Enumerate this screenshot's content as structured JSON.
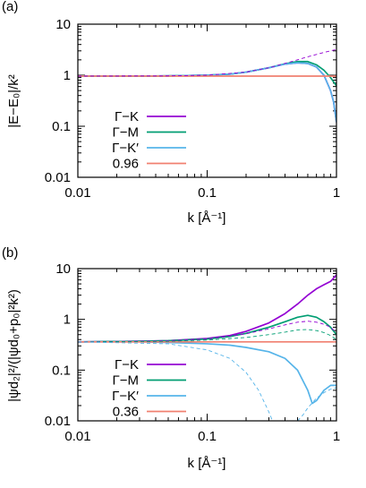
{
  "chart_data": [
    {
      "panel_label": "(a)",
      "type": "line",
      "xlabel": "k [Å⁻¹]",
      "ylabel": "|E−E₀|/k²",
      "xscale": "log",
      "yscale": "log",
      "xlim": [
        0.01,
        1
      ],
      "ylim": [
        0.01,
        10
      ],
      "xticks": [
        "0.01",
        "0.1",
        "1"
      ],
      "yticks": [
        "0.01",
        "0.1",
        "1",
        "10"
      ],
      "legend_position": "bottom-left",
      "series": [
        {
          "name": "Γ−K",
          "color": "#9400d3",
          "style": "solid",
          "x": [
            0.01,
            0.03,
            0.05,
            0.1,
            0.15,
            0.2,
            0.3,
            0.4,
            0.5,
            0.6,
            0.7,
            0.8,
            0.9,
            0.95,
            1.0
          ],
          "y": [
            0.96,
            0.96,
            0.97,
            1.0,
            1.05,
            1.15,
            1.4,
            1.65,
            1.75,
            1.7,
            1.45,
            1.0,
            0.5,
            0.3,
            0.12
          ]
        },
        {
          "name": "Γ−M",
          "color": "#009e73",
          "style": "solid",
          "x": [
            0.01,
            0.03,
            0.05,
            0.1,
            0.15,
            0.2,
            0.3,
            0.4,
            0.5,
            0.6,
            0.7,
            0.8,
            0.9,
            1.0
          ],
          "y": [
            0.96,
            0.96,
            0.97,
            1.0,
            1.05,
            1.15,
            1.4,
            1.68,
            1.85,
            1.85,
            1.6,
            1.25,
            0.9,
            0.62
          ]
        },
        {
          "name": "Γ−K′",
          "color": "#56b4e9",
          "style": "solid",
          "x": [
            0.01,
            0.03,
            0.05,
            0.1,
            0.15,
            0.2,
            0.3,
            0.4,
            0.5,
            0.6,
            0.7,
            0.8,
            0.9,
            0.95,
            1.0
          ],
          "y": [
            0.96,
            0.96,
            0.97,
            1.0,
            1.05,
            1.15,
            1.4,
            1.65,
            1.75,
            1.7,
            1.45,
            1.0,
            0.5,
            0.3,
            0.12
          ]
        },
        {
          "name": "0.96",
          "color": "#f08070",
          "style": "solid",
          "x": [
            0.01,
            1.0
          ],
          "y": [
            0.96,
            0.96
          ]
        },
        {
          "name": "",
          "color": "#9400d3",
          "style": "dashed",
          "x": [
            0.01,
            0.05,
            0.1,
            0.2,
            0.3,
            0.4,
            0.5,
            0.6,
            0.7,
            0.8,
            0.9,
            1.0
          ],
          "y": [
            0.96,
            0.97,
            1.0,
            1.15,
            1.4,
            1.7,
            2.0,
            2.3,
            2.55,
            2.8,
            3.0,
            3.2
          ]
        }
      ]
    },
    {
      "panel_label": "(b)",
      "type": "line",
      "xlabel": "k [Å⁻¹]",
      "ylabel": "|ψd₂|²/(|ψd₀+p₀|²k²)",
      "xscale": "log",
      "yscale": "log",
      "xlim": [
        0.01,
        1
      ],
      "ylim": [
        0.01,
        10
      ],
      "xticks": [
        "0.01",
        "0.1",
        "1"
      ],
      "yticks": [
        "0.01",
        "0.1",
        "1",
        "10"
      ],
      "legend_position": "bottom-left",
      "series": [
        {
          "name": "Γ−K",
          "color": "#9400d3",
          "style": "solid",
          "x": [
            0.01,
            0.03,
            0.05,
            0.1,
            0.15,
            0.2,
            0.3,
            0.4,
            0.5,
            0.6,
            0.7,
            0.8,
            0.9,
            1.0
          ],
          "y": [
            0.36,
            0.37,
            0.38,
            0.42,
            0.48,
            0.58,
            0.85,
            1.3,
            2.0,
            3.0,
            4.0,
            4.8,
            5.6,
            7.5
          ]
        },
        {
          "name": "Γ−M",
          "color": "#009e73",
          "style": "solid",
          "x": [
            0.01,
            0.03,
            0.05,
            0.1,
            0.15,
            0.2,
            0.3,
            0.4,
            0.5,
            0.6,
            0.7,
            0.8,
            0.9,
            1.0
          ],
          "y": [
            0.36,
            0.37,
            0.38,
            0.41,
            0.46,
            0.53,
            0.7,
            0.9,
            1.1,
            1.2,
            1.1,
            0.9,
            0.7,
            0.5
          ]
        },
        {
          "name": "Γ−K′",
          "color": "#56b4e9",
          "style": "solid",
          "x": [
            0.01,
            0.03,
            0.05,
            0.1,
            0.15,
            0.2,
            0.3,
            0.4,
            0.5,
            0.6,
            0.65,
            0.7,
            0.8,
            0.9,
            1.0
          ],
          "y": [
            0.36,
            0.36,
            0.35,
            0.33,
            0.31,
            0.28,
            0.23,
            0.17,
            0.1,
            0.04,
            0.022,
            0.025,
            0.04,
            0.05,
            0.05
          ]
        },
        {
          "name": "0.36",
          "color": "#f08070",
          "style": "solid",
          "x": [
            0.01,
            1.0
          ],
          "y": [
            0.36,
            0.36
          ]
        },
        {
          "name": "",
          "color": "#9400d3",
          "style": "dashed",
          "x": [
            0.01,
            0.05,
            0.1,
            0.2,
            0.3,
            0.4,
            0.5,
            0.6,
            0.7,
            0.8,
            0.9,
            1.0
          ],
          "y": [
            0.36,
            0.38,
            0.41,
            0.52,
            0.65,
            0.78,
            0.88,
            0.92,
            0.88,
            0.8,
            0.7,
            0.55
          ]
        },
        {
          "name": "",
          "color": "#009e73",
          "style": "dashed",
          "x": [
            0.01,
            0.05,
            0.1,
            0.2,
            0.3,
            0.4,
            0.5,
            0.6,
            0.7,
            0.8,
            0.9,
            1.0
          ],
          "y": [
            0.36,
            0.37,
            0.39,
            0.44,
            0.5,
            0.56,
            0.62,
            0.63,
            0.6,
            0.55,
            0.48,
            0.4
          ]
        },
        {
          "name": "",
          "color": "#56b4e9",
          "style": "dashed",
          "x": [
            0.01,
            0.05,
            0.1,
            0.15,
            0.2,
            0.25,
            0.3,
            0.32
          ],
          "y": [
            0.36,
            0.33,
            0.25,
            0.17,
            0.09,
            0.04,
            0.015,
            0.01
          ]
        },
        {
          "name": "",
          "color": "#56b4e9",
          "style": "dashed",
          "x": [
            0.5,
            0.55,
            0.6,
            0.7,
            0.8,
            0.9,
            1.0
          ],
          "y": [
            0.01,
            0.013,
            0.018,
            0.028,
            0.036,
            0.042,
            0.045
          ]
        }
      ]
    }
  ]
}
